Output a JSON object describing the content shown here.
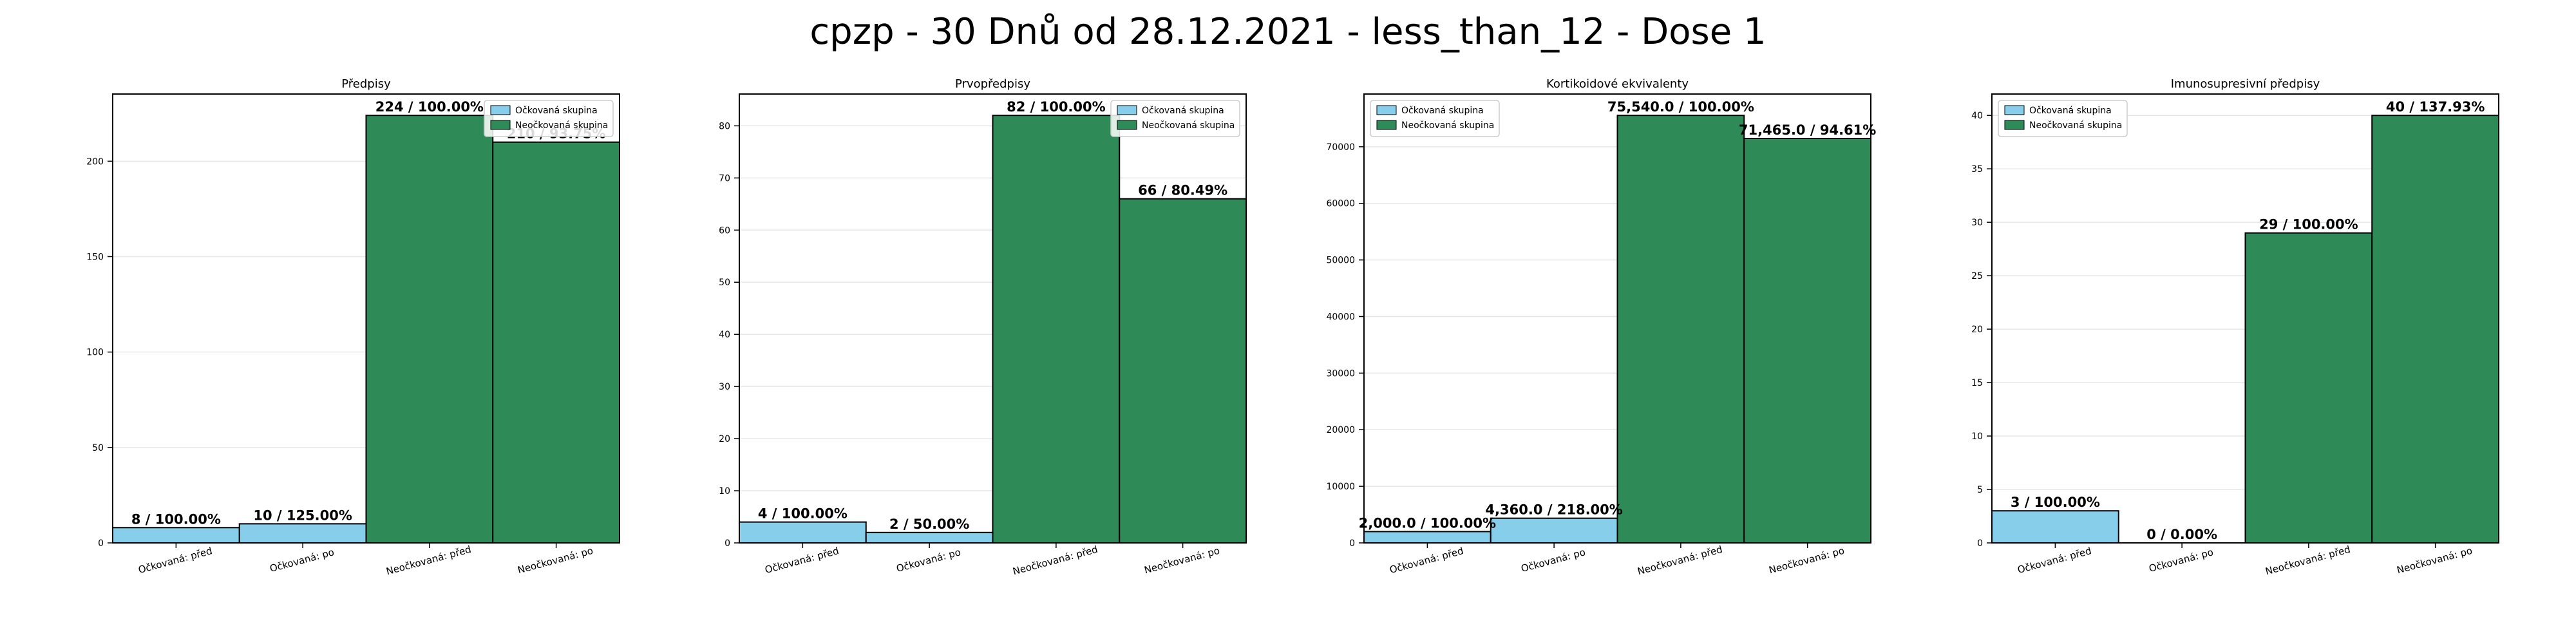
{
  "figure_title": "cpzp - 30 Dnů od 28.12.2021 - less_than_12 - Dose 1",
  "colors": {
    "vaccinated": "#87ceeb",
    "unvaccinated": "#2e8b57",
    "edge": "#000000",
    "grid": "#e6e6e6"
  },
  "chart_data": [
    {
      "type": "bar",
      "title": "Předpisy",
      "categories": [
        "Očkovaná: před",
        "Očkovaná: po",
        "Neočkovaná: před",
        "Neočkovaná: po"
      ],
      "values": [
        8,
        10,
        224,
        210
      ],
      "bar_labels": [
        "8 / 100.00%",
        "10 / 125.00%",
        "224 / 100.00%",
        "210 / 93.75%"
      ],
      "bar_groups": [
        "vaccinated",
        "vaccinated",
        "unvaccinated",
        "unvaccinated"
      ],
      "legend": [
        "Očkovaná skupina",
        "Neočkovaná skupina"
      ],
      "legend_loc": "upper right",
      "yticks": [
        0,
        50,
        100,
        150,
        200
      ],
      "ytick_labels": [
        "0",
        "50",
        "100",
        "150",
        "200"
      ],
      "ylim": [
        0,
        235.2
      ],
      "grid": true
    },
    {
      "type": "bar",
      "title": "Prvopředpisy",
      "categories": [
        "Očkovaná: před",
        "Očkovaná: po",
        "Neočkovaná: před",
        "Neočkovaná: po"
      ],
      "values": [
        4,
        2,
        82,
        66
      ],
      "bar_labels": [
        "4 / 100.00%",
        "2 / 50.00%",
        "82 / 100.00%",
        "66 / 80.49%"
      ],
      "bar_groups": [
        "vaccinated",
        "vaccinated",
        "unvaccinated",
        "unvaccinated"
      ],
      "legend": [
        "Očkovaná skupina",
        "Neočkovaná skupina"
      ],
      "legend_loc": "upper right",
      "yticks": [
        0,
        10,
        20,
        30,
        40,
        50,
        60,
        70,
        80
      ],
      "ytick_labels": [
        "0",
        "10",
        "20",
        "30",
        "40",
        "50",
        "60",
        "70",
        "80"
      ],
      "ylim": [
        0,
        86.1
      ],
      "grid": true
    },
    {
      "type": "bar",
      "title": "Kortikoidové ekvivalenty",
      "categories": [
        "Očkovaná: před",
        "Očkovaná: po",
        "Neočkovaná: před",
        "Neočkovaná: po"
      ],
      "values": [
        2000.0,
        4360.0,
        75540.0,
        71465.0
      ],
      "bar_labels": [
        "2,000.0 / 100.00%",
        "4,360.0 / 218.00%",
        "75,540.0 / 100.00%",
        "71,465.0 / 94.61%"
      ],
      "bar_groups": [
        "vaccinated",
        "vaccinated",
        "unvaccinated",
        "unvaccinated"
      ],
      "legend": [
        "Očkovaná skupina",
        "Neočkovaná skupina"
      ],
      "legend_loc": "upper left",
      "yticks": [
        0,
        10000,
        20000,
        30000,
        40000,
        50000,
        60000,
        70000
      ],
      "ytick_labels": [
        "0",
        "10000",
        "20000",
        "30000",
        "40000",
        "50000",
        "60000",
        "70000"
      ],
      "ylim": [
        0,
        79317
      ],
      "grid": true
    },
    {
      "type": "bar",
      "title": "Imunosupresivní předpisy",
      "categories": [
        "Očkovaná: před",
        "Očkovaná: po",
        "Neočkovaná: před",
        "Neočkovaná: po"
      ],
      "values": [
        3,
        0,
        29,
        40
      ],
      "bar_labels": [
        "3 / 100.00%",
        "0 / 0.00%",
        "29 / 100.00%",
        "40 / 137.93%"
      ],
      "bar_groups": [
        "vaccinated",
        "vaccinated",
        "unvaccinated",
        "unvaccinated"
      ],
      "legend": [
        "Očkovaná skupina",
        "Neočkovaná skupina"
      ],
      "legend_loc": "upper left",
      "yticks": [
        0,
        5,
        10,
        15,
        20,
        25,
        30,
        35,
        40
      ],
      "ytick_labels": [
        "0",
        "5",
        "10",
        "15",
        "20",
        "25",
        "30",
        "35",
        "40"
      ],
      "ylim": [
        0,
        42
      ],
      "grid": true
    }
  ]
}
